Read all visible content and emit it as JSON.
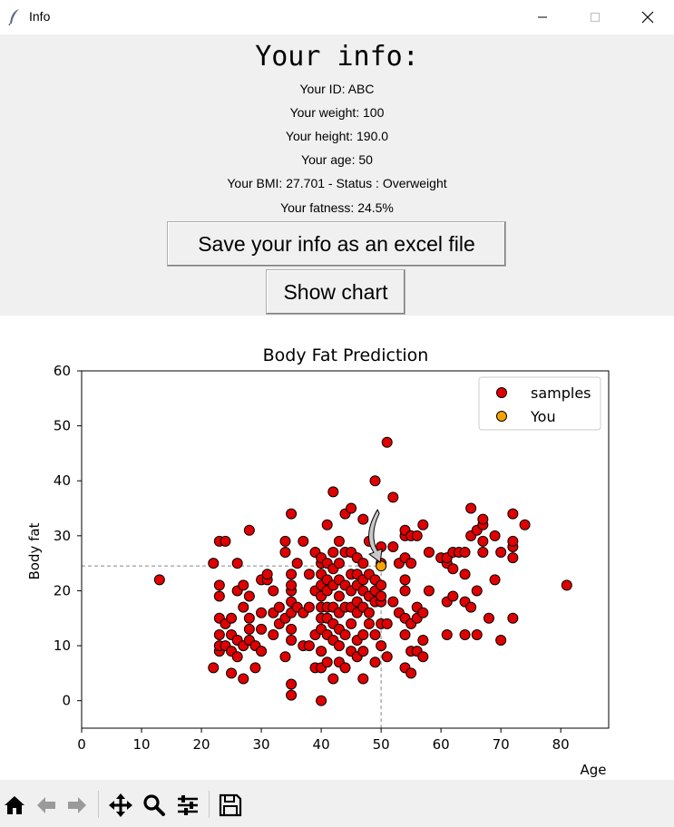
{
  "window": {
    "title": "Info"
  },
  "info": {
    "heading": "Your info:",
    "id_line": "Your ID: ABC",
    "weight_line": "Your weight: 100",
    "height_line": "Your height: 190.0",
    "age_line": "Your age: 50",
    "bmi_line": "Your BMI: 27.701 - Status : Overweight",
    "fat_line": "Your fatness: 24.5%"
  },
  "buttons": {
    "save_excel": "Save your info as an excel file",
    "show_chart": "Show chart"
  },
  "chart_data": {
    "type": "scatter",
    "title": "Body Fat Prediction",
    "xlabel": "Age",
    "ylabel": "Body fat",
    "xlim": [
      0,
      88
    ],
    "ylim": [
      -5,
      60
    ],
    "xticks": [
      0,
      10,
      20,
      30,
      40,
      50,
      60,
      70,
      80
    ],
    "yticks": [
      0,
      10,
      20,
      30,
      40,
      50,
      60
    ],
    "grid": false,
    "legend_position": "top-right",
    "series": [
      {
        "name": "samples",
        "color": "#e00000",
        "points": [
          [
            13,
            22
          ],
          [
            22,
            6
          ],
          [
            22,
            25
          ],
          [
            23,
            9
          ],
          [
            23,
            10
          ],
          [
            23,
            12
          ],
          [
            23,
            15
          ],
          [
            23,
            19
          ],
          [
            23,
            21
          ],
          [
            23,
            29
          ],
          [
            24,
            10
          ],
          [
            24,
            14
          ],
          [
            24,
            29
          ],
          [
            25,
            5
          ],
          [
            25,
            9
          ],
          [
            25,
            12
          ],
          [
            25,
            15
          ],
          [
            26,
            8
          ],
          [
            26,
            11
          ],
          [
            26,
            20
          ],
          [
            26,
            25
          ],
          [
            27,
            4
          ],
          [
            27,
            10
          ],
          [
            27,
            17
          ],
          [
            27,
            21
          ],
          [
            28,
            11
          ],
          [
            28,
            13
          ],
          [
            28,
            15
          ],
          [
            28,
            19
          ],
          [
            28,
            31
          ],
          [
            29,
            6
          ],
          [
            29,
            10
          ],
          [
            30,
            9
          ],
          [
            30,
            13
          ],
          [
            30,
            16
          ],
          [
            30,
            22
          ],
          [
            31,
            22
          ],
          [
            31,
            23
          ],
          [
            32,
            12
          ],
          [
            32,
            16
          ],
          [
            32,
            20
          ],
          [
            33,
            14
          ],
          [
            33,
            17
          ],
          [
            34,
            8
          ],
          [
            34,
            15
          ],
          [
            34,
            27
          ],
          [
            34,
            29
          ],
          [
            35,
            1
          ],
          [
            35,
            3
          ],
          [
            35,
            11
          ],
          [
            35,
            13
          ],
          [
            35,
            16
          ],
          [
            35,
            18
          ],
          [
            35,
            20
          ],
          [
            35,
            21
          ],
          [
            35,
            23
          ],
          [
            35,
            34
          ],
          [
            36,
            17
          ],
          [
            36,
            25
          ],
          [
            37,
            10
          ],
          [
            37,
            16
          ],
          [
            37,
            29
          ],
          [
            38,
            10
          ],
          [
            38,
            17
          ],
          [
            38,
            23
          ],
          [
            39,
            6
          ],
          [
            39,
            12
          ],
          [
            39,
            20
          ],
          [
            39,
            27
          ],
          [
            40,
            0
          ],
          [
            40,
            6
          ],
          [
            40,
            9
          ],
          [
            40,
            13
          ],
          [
            40,
            15
          ],
          [
            40,
            17
          ],
          [
            40,
            19
          ],
          [
            40,
            21
          ],
          [
            40,
            23
          ],
          [
            40,
            25
          ],
          [
            40,
            26
          ],
          [
            41,
            7
          ],
          [
            41,
            12
          ],
          [
            41,
            15
          ],
          [
            41,
            17
          ],
          [
            41,
            20
          ],
          [
            41,
            22
          ],
          [
            41,
            25
          ],
          [
            41,
            32
          ],
          [
            42,
            4
          ],
          [
            42,
            11
          ],
          [
            42,
            14
          ],
          [
            42,
            17
          ],
          [
            42,
            21
          ],
          [
            42,
            24
          ],
          [
            42,
            27
          ],
          [
            42,
            38
          ],
          [
            43,
            7
          ],
          [
            43,
            10
          ],
          [
            43,
            13
          ],
          [
            43,
            16
          ],
          [
            43,
            19
          ],
          [
            43,
            22
          ],
          [
            43,
            25
          ],
          [
            43,
            29
          ],
          [
            44,
            6
          ],
          [
            44,
            12
          ],
          [
            44,
            17
          ],
          [
            44,
            21
          ],
          [
            44,
            27
          ],
          [
            44,
            34
          ],
          [
            45,
            9
          ],
          [
            45,
            14
          ],
          [
            45,
            17
          ],
          [
            45,
            20
          ],
          [
            45,
            23
          ],
          [
            45,
            27
          ],
          [
            45,
            35
          ],
          [
            46,
            8
          ],
          [
            46,
            11
          ],
          [
            46,
            16
          ],
          [
            46,
            18
          ],
          [
            46,
            21
          ],
          [
            46,
            23
          ],
          [
            46,
            26
          ],
          [
            47,
            4
          ],
          [
            47,
            9
          ],
          [
            47,
            12
          ],
          [
            47,
            17
          ],
          [
            47,
            20
          ],
          [
            47,
            22
          ],
          [
            47,
            25
          ],
          [
            47,
            33
          ],
          [
            48,
            14
          ],
          [
            48,
            16
          ],
          [
            48,
            19
          ],
          [
            48,
            23
          ],
          [
            48,
            29
          ],
          [
            49,
            7
          ],
          [
            49,
            12
          ],
          [
            49,
            18
          ],
          [
            49,
            20
          ],
          [
            49,
            22
          ],
          [
            49,
            40
          ],
          [
            50,
            10
          ],
          [
            50,
            14
          ],
          [
            50,
            18
          ],
          [
            50,
            19
          ],
          [
            50,
            21
          ],
          [
            50,
            25
          ],
          [
            50,
            28
          ],
          [
            51,
            8
          ],
          [
            51,
            14
          ],
          [
            51,
            47
          ],
          [
            52,
            18
          ],
          [
            52,
            28
          ],
          [
            52,
            37
          ],
          [
            53,
            16
          ],
          [
            53,
            25
          ],
          [
            54,
            6
          ],
          [
            54,
            12
          ],
          [
            54,
            15
          ],
          [
            54,
            20
          ],
          [
            54,
            22
          ],
          [
            54,
            26
          ],
          [
            54,
            30
          ],
          [
            54,
            31
          ],
          [
            55,
            5
          ],
          [
            55,
            9
          ],
          [
            55,
            14
          ],
          [
            55,
            25
          ],
          [
            55,
            30
          ],
          [
            56,
            9
          ],
          [
            56,
            15
          ],
          [
            56,
            17
          ],
          [
            56,
            30
          ],
          [
            57,
            8
          ],
          [
            57,
            11
          ],
          [
            57,
            16
          ],
          [
            57,
            32
          ],
          [
            58,
            20
          ],
          [
            58,
            27
          ],
          [
            60,
            26
          ],
          [
            61,
            12
          ],
          [
            61,
            18
          ],
          [
            61,
            25
          ],
          [
            61,
            26
          ],
          [
            62,
            19
          ],
          [
            62,
            24
          ],
          [
            62,
            27
          ],
          [
            63,
            27
          ],
          [
            64,
            12
          ],
          [
            64,
            18
          ],
          [
            64,
            23
          ],
          [
            64,
            27
          ],
          [
            65,
            17
          ],
          [
            65,
            30
          ],
          [
            65,
            35
          ],
          [
            66,
            12
          ],
          [
            66,
            20
          ],
          [
            66,
            31
          ],
          [
            67,
            27
          ],
          [
            67,
            29
          ],
          [
            67,
            32
          ],
          [
            67,
            33
          ],
          [
            68,
            15
          ],
          [
            69,
            22
          ],
          [
            69,
            30
          ],
          [
            70,
            11
          ],
          [
            70,
            27
          ],
          [
            72,
            15
          ],
          [
            72,
            26
          ],
          [
            72,
            28
          ],
          [
            72,
            29
          ],
          [
            72,
            34
          ],
          [
            74,
            32
          ],
          [
            81,
            21
          ]
        ]
      },
      {
        "name": "You",
        "color": "#f5a400",
        "points": [
          [
            50,
            24.5
          ]
        ]
      }
    ]
  },
  "toolbar": {
    "home": "home-icon",
    "back": "back-arrow-icon",
    "forward": "forward-arrow-icon",
    "pan": "pan-icon",
    "zoom": "zoom-icon",
    "configure": "configure-subplots-icon",
    "save": "save-icon"
  }
}
